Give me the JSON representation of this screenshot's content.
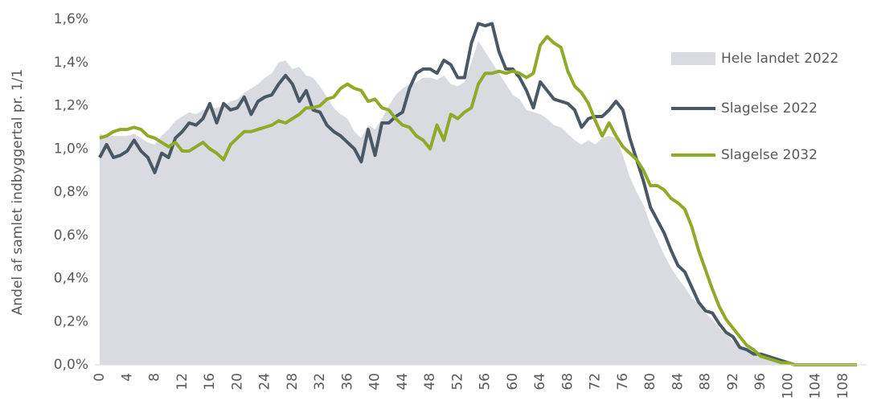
{
  "chart_data": {
    "type": "line",
    "y_label": "Andel af samlet indbyggertal pr. 1/1",
    "x": [
      0,
      1,
      2,
      3,
      4,
      5,
      6,
      7,
      8,
      9,
      10,
      11,
      12,
      13,
      14,
      15,
      16,
      17,
      18,
      19,
      20,
      21,
      22,
      23,
      24,
      25,
      26,
      27,
      28,
      29,
      30,
      31,
      32,
      33,
      34,
      35,
      36,
      37,
      38,
      39,
      40,
      41,
      42,
      43,
      44,
      45,
      46,
      47,
      48,
      49,
      50,
      51,
      52,
      53,
      54,
      55,
      56,
      57,
      58,
      59,
      60,
      61,
      62,
      63,
      64,
      65,
      66,
      67,
      68,
      69,
      70,
      71,
      72,
      73,
      74,
      75,
      76,
      77,
      78,
      79,
      80,
      81,
      82,
      83,
      84,
      85,
      86,
      87,
      88,
      89,
      90,
      91,
      92,
      93,
      94,
      95,
      96,
      97,
      98,
      99,
      100,
      101,
      102,
      103,
      104,
      105,
      106,
      107,
      108,
      109,
      110
    ],
    "xlim": [
      0,
      110
    ],
    "xticks": [
      0,
      4,
      8,
      12,
      16,
      20,
      24,
      28,
      32,
      36,
      40,
      44,
      48,
      52,
      56,
      60,
      64,
      68,
      72,
      76,
      80,
      84,
      88,
      92,
      96,
      100,
      104,
      108
    ],
    "ylim": [
      0,
      1.6
    ],
    "yticks": [
      {
        "value": 0,
        "label": "0,0%"
      },
      {
        "value": 0.2,
        "label": "0,2%"
      },
      {
        "value": 0.4,
        "label": "0,4%"
      },
      {
        "value": 0.6,
        "label": "0,6%"
      },
      {
        "value": 0.8,
        "label": "0,8%"
      },
      {
        "value": 1.0,
        "label": "1,0%"
      },
      {
        "value": 1.2,
        "label": "1,2%"
      },
      {
        "value": 1.4,
        "label": "1,4%"
      },
      {
        "value": 1.6,
        "label": "1,6%"
      }
    ],
    "legend": "right",
    "series": [
      {
        "name": "Hele landet 2022",
        "color": "#d9dbe0",
        "style": "area",
        "values": [
          1.07,
          1.06,
          1.06,
          1.06,
          1.06,
          1.07,
          1.05,
          1.03,
          1.02,
          1.06,
          1.09,
          1.13,
          1.15,
          1.17,
          1.16,
          1.18,
          1.19,
          1.19,
          1.2,
          1.22,
          1.23,
          1.26,
          1.28,
          1.3,
          1.33,
          1.35,
          1.4,
          1.41,
          1.37,
          1.38,
          1.34,
          1.33,
          1.29,
          1.24,
          1.19,
          1.16,
          1.14,
          1.08,
          1.05,
          1.11,
          1.09,
          1.14,
          1.2,
          1.25,
          1.28,
          1.3,
          1.31,
          1.33,
          1.33,
          1.32,
          1.34,
          1.3,
          1.29,
          1.31,
          1.4,
          1.5,
          1.45,
          1.4,
          1.35,
          1.3,
          1.25,
          1.23,
          1.18,
          1.17,
          1.16,
          1.14,
          1.11,
          1.1,
          1.07,
          1.04,
          1.02,
          1.04,
          1.02,
          1.05,
          1.06,
          1.05,
          0.97,
          0.87,
          0.8,
          0.74,
          0.65,
          0.58,
          0.51,
          0.45,
          0.4,
          0.36,
          0.31,
          0.28,
          0.24,
          0.21,
          0.17,
          0.14,
          0.11,
          0.08,
          0.06,
          0.05,
          0.04,
          0.03,
          0.02,
          0.01,
          0.01,
          0,
          0,
          0,
          0,
          0,
          0,
          0,
          0,
          0,
          0
        ]
      },
      {
        "name": "Slagelse 2022",
        "color": "#4a5866",
        "style": "line",
        "values": [
          0.96,
          1.02,
          0.96,
          0.97,
          0.99,
          1.04,
          0.99,
          0.96,
          0.89,
          0.98,
          0.96,
          1.05,
          1.08,
          1.12,
          1.11,
          1.14,
          1.21,
          1.12,
          1.21,
          1.18,
          1.19,
          1.24,
          1.16,
          1.22,
          1.24,
          1.25,
          1.3,
          1.34,
          1.3,
          1.22,
          1.27,
          1.18,
          1.17,
          1.11,
          1.08,
          1.06,
          1.03,
          1.0,
          0.94,
          1.09,
          0.97,
          1.12,
          1.12,
          1.15,
          1.17,
          1.28,
          1.35,
          1.37,
          1.37,
          1.35,
          1.41,
          1.39,
          1.33,
          1.33,
          1.49,
          1.58,
          1.57,
          1.58,
          1.45,
          1.37,
          1.37,
          1.33,
          1.27,
          1.19,
          1.31,
          1.27,
          1.23,
          1.22,
          1.21,
          1.18,
          1.1,
          1.14,
          1.15,
          1.15,
          1.18,
          1.22,
          1.18,
          1.05,
          0.95,
          0.85,
          0.73,
          0.67,
          0.61,
          0.53,
          0.46,
          0.43,
          0.36,
          0.29,
          0.25,
          0.24,
          0.19,
          0.15,
          0.13,
          0.08,
          0.07,
          0.05,
          0.05,
          0.04,
          0.03,
          0.02,
          0.01,
          0,
          0,
          0,
          0,
          0,
          0,
          0,
          0,
          0,
          0
        ]
      },
      {
        "name": "Slagelse 2032",
        "color": "#8faa28",
        "style": "line",
        "values": [
          1.05,
          1.06,
          1.08,
          1.09,
          1.09,
          1.1,
          1.09,
          1.06,
          1.05,
          1.03,
          1.01,
          1.03,
          0.99,
          0.99,
          1.01,
          1.03,
          1.0,
          0.98,
          0.95,
          1.02,
          1.05,
          1.08,
          1.08,
          1.09,
          1.1,
          1.11,
          1.13,
          1.12,
          1.14,
          1.16,
          1.19,
          1.19,
          1.2,
          1.23,
          1.24,
          1.28,
          1.3,
          1.28,
          1.27,
          1.22,
          1.23,
          1.19,
          1.18,
          1.14,
          1.11,
          1.1,
          1.06,
          1.04,
          1.0,
          1.11,
          1.04,
          1.16,
          1.14,
          1.17,
          1.19,
          1.3,
          1.35,
          1.35,
          1.36,
          1.35,
          1.36,
          1.35,
          1.33,
          1.35,
          1.48,
          1.52,
          1.49,
          1.47,
          1.36,
          1.29,
          1.26,
          1.21,
          1.13,
          1.06,
          1.12,
          1.06,
          1.01,
          0.98,
          0.95,
          0.9,
          0.83,
          0.83,
          0.81,
          0.77,
          0.75,
          0.72,
          0.64,
          0.53,
          0.44,
          0.35,
          0.27,
          0.21,
          0.17,
          0.13,
          0.09,
          0.07,
          0.04,
          0.03,
          0.02,
          0.01,
          0.01,
          0,
          0,
          0,
          0,
          0,
          0,
          0,
          0,
          0,
          0
        ]
      }
    ]
  }
}
